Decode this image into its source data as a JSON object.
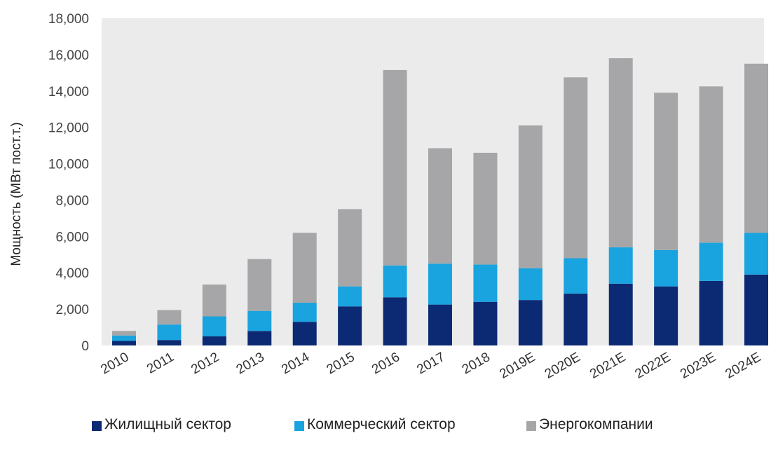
{
  "chart_data": {
    "type": "bar",
    "stacked": true,
    "categories": [
      "2010",
      "2011",
      "2012",
      "2013",
      "2014",
      "2015",
      "2016",
      "2017",
      "2018",
      "2019E",
      "2020E",
      "2021E",
      "2022E",
      "2023E",
      "2024E"
    ],
    "series": [
      {
        "name": "Жилищный сектор",
        "color": "#0b2a73",
        "values": [
          250,
          300,
          500,
          800,
          1300,
          2150,
          2650,
          2250,
          2400,
          2500,
          2850,
          3400,
          3250,
          3550,
          3900
        ]
      },
      {
        "name": "Коммерческий сектор",
        "color": "#19a3df",
        "values": [
          300,
          850,
          1100,
          1100,
          1050,
          1100,
          1750,
          2250,
          2050,
          1750,
          1950,
          2000,
          2000,
          2100,
          2300
        ]
      },
      {
        "name": "Энергокомпании",
        "color": "#a6a6a8",
        "values": [
          250,
          800,
          1750,
          2850,
          3850,
          4250,
          10750,
          6350,
          6150,
          7850,
          9950,
          10400,
          8650,
          8600,
          9300
        ]
      }
    ],
    "ylabel": "Мощность (МВт пост.т.)",
    "ylim": [
      0,
      18000
    ],
    "yticks": [
      "18,000",
      "16,000",
      "14,000",
      "12,000",
      "10,000",
      "8,000",
      "6,000",
      "4,000",
      "2,000",
      "0"
    ],
    "legend_position": "bottom",
    "plot_background": "#ebebeb"
  }
}
